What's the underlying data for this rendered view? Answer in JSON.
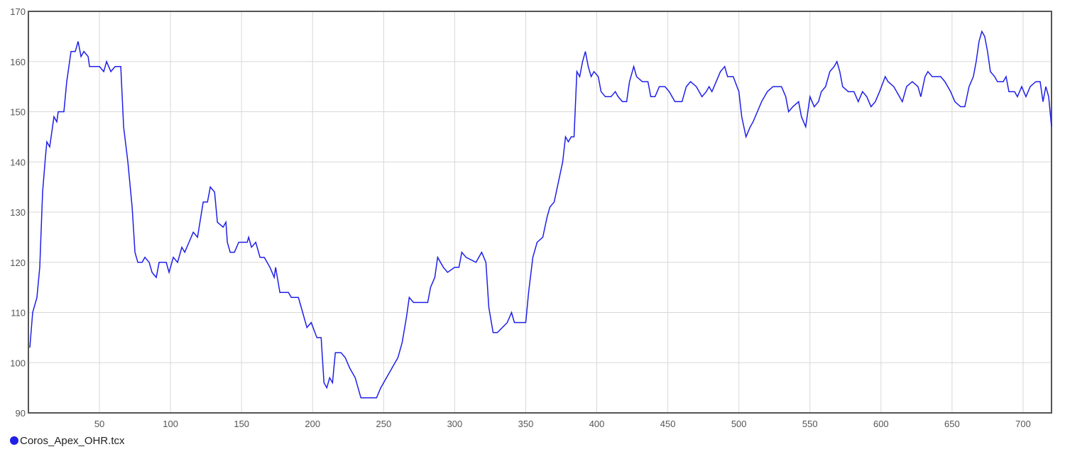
{
  "chart_data": {
    "type": "line",
    "x": [
      1,
      3,
      6,
      8,
      10,
      12,
      13,
      15,
      16,
      18,
      20,
      21,
      25,
      27,
      29,
      30,
      33,
      35,
      37,
      39,
      42,
      43,
      50,
      53,
      55,
      58,
      61,
      65,
      67,
      70,
      73,
      75,
      77,
      80,
      82,
      85,
      87,
      90,
      92,
      97,
      99,
      102,
      105,
      108,
      110,
      113,
      116,
      119,
      123,
      126,
      128,
      131,
      133,
      137,
      139,
      140,
      142,
      145,
      148,
      154,
      155,
      157,
      160,
      163,
      166,
      170,
      173,
      174,
      177,
      183,
      185,
      190,
      193,
      196,
      199,
      203,
      206,
      208,
      210,
      212,
      214,
      216,
      220,
      223,
      226,
      230,
      234,
      240,
      245,
      248,
      252,
      256,
      260,
      263,
      266,
      268,
      271,
      275,
      281,
      283,
      286,
      288,
      292,
      295,
      300,
      303,
      305,
      308,
      315,
      319,
      322,
      324,
      327,
      330,
      337,
      340,
      342,
      350,
      352,
      355,
      358,
      362,
      365,
      367,
      370,
      373,
      376,
      378,
      380,
      382,
      384,
      386,
      388,
      390,
      392,
      394,
      396,
      398,
      401,
      403,
      406,
      410,
      413,
      415,
      418,
      421,
      423,
      426,
      428,
      432,
      436,
      438,
      441,
      444,
      448,
      451,
      455,
      460,
      463,
      466,
      470,
      474,
      477,
      479,
      481,
      484,
      487,
      490,
      492,
      496,
      500,
      502,
      505,
      508,
      510,
      513,
      516,
      520,
      524,
      530,
      533,
      535,
      538,
      542,
      544,
      547,
      550,
      553,
      556,
      558,
      561,
      564,
      567,
      569,
      571,
      573,
      577,
      581,
      584,
      587,
      590,
      593,
      596,
      599,
      603,
      605,
      609,
      613,
      615,
      618,
      622,
      626,
      628,
      631,
      633,
      636,
      642,
      645,
      649,
      652,
      656,
      659,
      662,
      665,
      667,
      669,
      671,
      673,
      675,
      677,
      680,
      682,
      686,
      688,
      690,
      694,
      696,
      699,
      702,
      705,
      709,
      712,
      714,
      716,
      718,
      720
    ],
    "series": [
      {
        "name": "Coros_Apex_OHR.tcx",
        "color": "#1f1fe8",
        "values": [
          103,
          110,
          113,
          119,
          134,
          141,
          144,
          143,
          145,
          149,
          148,
          150,
          150,
          156,
          160,
          162,
          162,
          164,
          161,
          162,
          161,
          159,
          159,
          158,
          160,
          158,
          159,
          159,
          147,
          140,
          131,
          122,
          120,
          120,
          121,
          120,
          118,
          117,
          120,
          120,
          118,
          121,
          120,
          123,
          122,
          124,
          126,
          125,
          132,
          132,
          135,
          134,
          128,
          127,
          128,
          124,
          122,
          122,
          124,
          124,
          125,
          123,
          124,
          121,
          121,
          119,
          117,
          119,
          114,
          114,
          113,
          113,
          110,
          107,
          108,
          105,
          105,
          96,
          95,
          97,
          96,
          102,
          102,
          101,
          99,
          97,
          93,
          93,
          93,
          95,
          97,
          99,
          101,
          104,
          109,
          113,
          112,
          112,
          112,
          115,
          117,
          121,
          119,
          118,
          119,
          119,
          122,
          121,
          120,
          122,
          120,
          111,
          106,
          106,
          108,
          110,
          108,
          108,
          114,
          121,
          124,
          125,
          129,
          131,
          132,
          136,
          140,
          145,
          144,
          145,
          145,
          158,
          157,
          160,
          162,
          159,
          157,
          158,
          157,
          154,
          153,
          153,
          154,
          153,
          152,
          152,
          156,
          159,
          157,
          156,
          156,
          153,
          153,
          155,
          155,
          154,
          152,
          152,
          155,
          156,
          155,
          153,
          154,
          155,
          154,
          156,
          158,
          159,
          157,
          157,
          154,
          149,
          145,
          147,
          148,
          150,
          152,
          154,
          155,
          155,
          153,
          150,
          151,
          152,
          149,
          147,
          153,
          151,
          152,
          154,
          155,
          158,
          159,
          160,
          158,
          155,
          154,
          154,
          152,
          154,
          153,
          151,
          152,
          154,
          157,
          156,
          155,
          153,
          152,
          155,
          156,
          155,
          153,
          157,
          158,
          157,
          157,
          156,
          154,
          152,
          151,
          151,
          155,
          157,
          160,
          164,
          166,
          165,
          162,
          158,
          157,
          156,
          156,
          157,
          154,
          154,
          153,
          155,
          153,
          155,
          156,
          156,
          152,
          155,
          153,
          147
        ]
      }
    ],
    "xlim": [
      0,
      720
    ],
    "xticks": [
      50,
      100,
      150,
      200,
      250,
      300,
      350,
      400,
      450,
      500,
      550,
      600,
      650,
      700
    ],
    "ylim": [
      90,
      170
    ],
    "yticks": [
      90,
      100,
      110,
      120,
      130,
      140,
      150,
      160,
      170
    ],
    "grid": true
  }
}
